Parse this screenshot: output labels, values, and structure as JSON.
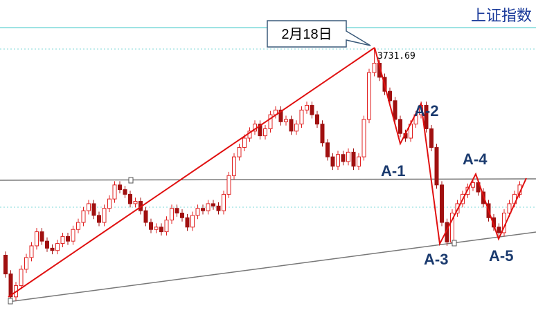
{
  "chart_data": {
    "type": "candlestick",
    "title": "上证指数",
    "annotations": [
      "2月18日",
      "A-1",
      "A-2",
      "A-3",
      "A-4",
      "A-5"
    ],
    "ylim": [
      3158,
      3835
    ],
    "open": [
      3290,
      3250,
      3201,
      3225,
      3260,
      3285,
      3310,
      3340,
      3320,
      3305,
      3300,
      3315,
      3330,
      3320,
      3345,
      3360,
      3385,
      3400,
      3375,
      3360,
      3390,
      3410,
      3440,
      3430,
      3420,
      3400,
      3405,
      3385,
      3360,
      3345,
      3350,
      3340,
      3365,
      3390,
      3380,
      3370,
      3350,
      3375,
      3390,
      3385,
      3400,
      3395,
      3385,
      3420,
      3460,
      3500,
      3520,
      3540,
      3555,
      3570,
      3545,
      3560,
      3590,
      3600,
      3575,
      3580,
      3555,
      3570,
      3600,
      3610,
      3590,
      3570,
      3530,
      3500,
      3480,
      3505,
      3490,
      3510,
      3480,
      3500,
      3580,
      3680,
      3700,
      3670,
      3640,
      3620,
      3580,
      3550,
      3540,
      3570,
      3590,
      3610,
      3560,
      3520,
      3440,
      3360,
      3318,
      3380,
      3400,
      3420,
      3435,
      3445,
      3425,
      3400,
      3370,
      3350,
      3338,
      3380,
      3400,
      3420
    ],
    "high": [
      3298,
      3258,
      3233,
      3268,
      3293,
      3318,
      3348,
      3348,
      3328,
      3313,
      3323,
      3338,
      3338,
      3353,
      3368,
      3393,
      3408,
      3408,
      3383,
      3398,
      3418,
      3448,
      3448,
      3438,
      3428,
      3413,
      3413,
      3393,
      3368,
      3358,
      3358,
      3373,
      3398,
      3398,
      3388,
      3378,
      3383,
      3398,
      3398,
      3408,
      3408,
      3403,
      3428,
      3468,
      3508,
      3528,
      3548,
      3563,
      3578,
      3578,
      3568,
      3598,
      3608,
      3608,
      3588,
      3588,
      3578,
      3608,
      3618,
      3618,
      3598,
      3578,
      3538,
      3508,
      3513,
      3513,
      3518,
      3518,
      3508,
      3588,
      3688,
      3731.69,
      3708,
      3678,
      3648,
      3628,
      3588,
      3558,
      3578,
      3598,
      3618,
      3618,
      3568,
      3528,
      3448,
      3368,
      3388,
      3408,
      3428,
      3443,
      3453,
      3453,
      3433,
      3408,
      3378,
      3358,
      3388,
      3408,
      3428,
      3448
    ],
    "low": [
      3242,
      3193,
      3193,
      3217,
      3252,
      3277,
      3302,
      3312,
      3297,
      3292,
      3292,
      3307,
      3312,
      3312,
      3337,
      3352,
      3377,
      3367,
      3352,
      3352,
      3382,
      3402,
      3422,
      3412,
      3392,
      3392,
      3377,
      3352,
      3337,
      3337,
      3332,
      3332,
      3357,
      3372,
      3362,
      3342,
      3342,
      3367,
      3377,
      3377,
      3387,
      3377,
      3377,
      3412,
      3452,
      3492,
      3512,
      3532,
      3547,
      3537,
      3537,
      3552,
      3582,
      3567,
      3567,
      3547,
      3547,
      3562,
      3592,
      3582,
      3562,
      3522,
      3492,
      3472,
      3472,
      3482,
      3482,
      3472,
      3472,
      3492,
      3572,
      3672,
      3662,
      3632,
      3612,
      3572,
      3542,
      3532,
      3532,
      3562,
      3582,
      3552,
      3512,
      3432,
      3352,
      3310,
      3310,
      3372,
      3392,
      3412,
      3427,
      3417,
      3392,
      3362,
      3342,
      3330,
      3330,
      3372,
      3392,
      3412
    ],
    "close": [
      3250,
      3201,
      3225,
      3260,
      3285,
      3310,
      3340,
      3320,
      3305,
      3300,
      3315,
      3330,
      3320,
      3345,
      3360,
      3385,
      3400,
      3375,
      3360,
      3390,
      3410,
      3440,
      3430,
      3420,
      3400,
      3405,
      3385,
      3360,
      3345,
      3350,
      3340,
      3365,
      3390,
      3380,
      3370,
      3350,
      3375,
      3390,
      3385,
      3400,
      3395,
      3385,
      3420,
      3460,
      3500,
      3520,
      3540,
      3555,
      3570,
      3545,
      3560,
      3590,
      3600,
      3575,
      3580,
      3555,
      3570,
      3600,
      3610,
      3590,
      3570,
      3530,
      3500,
      3480,
      3505,
      3490,
      3510,
      3480,
      3500,
      3580,
      3680,
      3700,
      3670,
      3640,
      3620,
      3580,
      3550,
      3540,
      3570,
      3590,
      3610,
      3560,
      3520,
      3440,
      3360,
      3318,
      3380,
      3400,
      3420,
      3435,
      3445,
      3425,
      3400,
      3370,
      3350,
      3338,
      3380,
      3400,
      3420,
      3440
    ],
    "up_color": "#e02020",
    "down_color": "#a01010"
  }
}
